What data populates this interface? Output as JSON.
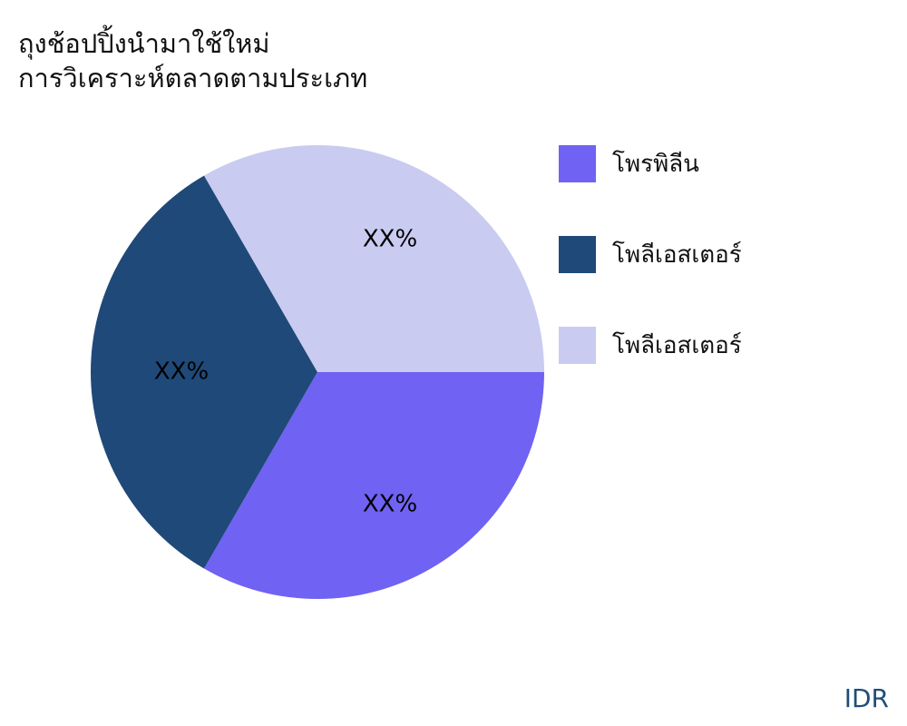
{
  "chart_data": {
    "type": "pie",
    "title": [
      "ถุงช้อปปิ้งนำมาใช้ใหม่",
      "การวิเคราะห์ตลาดตามประเภท"
    ],
    "series": [
      {
        "name": "โพรพิลีน",
        "value": 33.33,
        "label": "XX%",
        "color": "#7062f2"
      },
      {
        "name": "โพลีเอสเตอร์",
        "value": 33.33,
        "label": "XX%",
        "color": "#1f4978"
      },
      {
        "name": "โพลีเอสเตอร์",
        "value": 33.33,
        "label": "XX%",
        "color": "#c9cbf1"
      }
    ],
    "legend_position": "right",
    "start_angle": "3 o'clock, clockwise"
  },
  "footer": "IDR"
}
